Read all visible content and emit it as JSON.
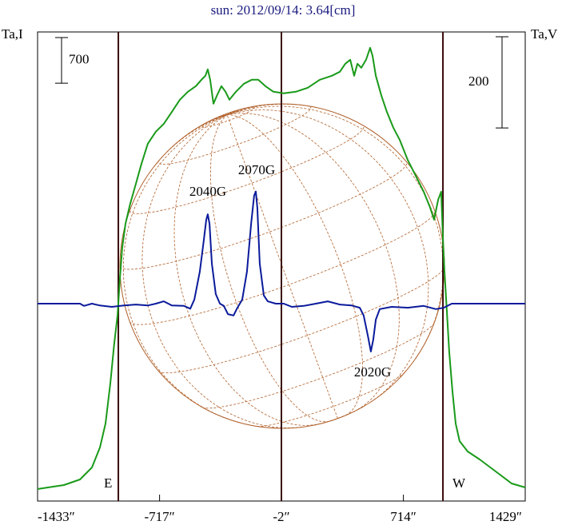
{
  "chart_data": {
    "type": "line",
    "title": "sun: 2012/09/14: 3.64[cm]",
    "ylabel": "Ta,I",
    "y2label": "Ta,V",
    "xlim": [
      -1433,
      1429
    ],
    "xticks": [
      {
        "value": -1433,
        "label": "-1433″"
      },
      {
        "value": -717,
        "label": "-717″"
      },
      {
        "value": -2,
        "label": "-2″"
      },
      {
        "value": 714,
        "label": "714″"
      },
      {
        "value": 1429,
        "label": "1429″"
      }
    ],
    "ylim": [
      0,
      7200
    ],
    "y2lim": [
      -433,
      596
    ],
    "scale_bars": [
      {
        "axis": "y",
        "value": 700
      },
      {
        "axis": "y2",
        "value": 200
      }
    ],
    "vlines": [
      {
        "x": -959,
        "label": "E"
      },
      {
        "x": -2
      },
      {
        "x": 946,
        "label": "W"
      }
    ],
    "annotations": [
      "2040G",
      "2070G",
      "2020G"
    ],
    "series": [
      {
        "color": "#1a9a1a",
        "axis": "y",
        "x": [
          -1433,
          -1372,
          -1278,
          -1184,
          -1114,
          -1067,
          -1034,
          -1006,
          -983,
          -964,
          -950,
          -936,
          -917,
          -889,
          -856,
          -823,
          -786,
          -739,
          -692,
          -645,
          -598,
          -551,
          -504,
          -471,
          -448,
          -434,
          -420,
          -401,
          -377,
          -354,
          -330,
          -307,
          -269,
          -222,
          -176,
          -138,
          -96,
          -49,
          12,
          83,
          153,
          223,
          294,
          341,
          373,
          402,
          425,
          444,
          467,
          495,
          519,
          533,
          552,
          585,
          617,
          655,
          692,
          739,
          786,
          833,
          871,
          894,
          918,
          936,
          946,
          955,
          969,
          983,
          1002,
          1021,
          1044,
          1091,
          1162,
          1256,
          1349,
          1429
        ],
        "values": [
          184,
          209,
          245,
          331,
          515,
          822,
          1190,
          1804,
          2417,
          2847,
          3399,
          3890,
          4258,
          4564,
          4871,
          5178,
          5485,
          5669,
          5791,
          5975,
          6160,
          6282,
          6368,
          6466,
          6528,
          6626,
          6466,
          6098,
          6245,
          6368,
          6282,
          6160,
          6282,
          6405,
          6466,
          6466,
          6368,
          6282,
          6258,
          6282,
          6344,
          6466,
          6528,
          6589,
          6712,
          6773,
          6528,
          6712,
          6650,
          6773,
          6957,
          6834,
          6528,
          6221,
          5975,
          5730,
          5546,
          5239,
          4994,
          4748,
          4503,
          4319,
          4626,
          4748,
          4012,
          3522,
          2908,
          2294,
          1681,
          1190,
          920,
          761,
          638,
          454,
          270,
          209
        ]
      },
      {
        "color": "#0a1a9a",
        "axis": "y2",
        "x": [
          -1433,
          -1184,
          -1161,
          -1114,
          -1067,
          -997,
          -926,
          -856,
          -786,
          -739,
          -692,
          -645,
          -574,
          -537,
          -513,
          -481,
          -457,
          -443,
          -434,
          -424,
          -410,
          -387,
          -363,
          -340,
          -316,
          -283,
          -260,
          -232,
          -204,
          -180,
          -162,
          -152,
          -143,
          -129,
          -105,
          -82,
          -35,
          12,
          59,
          129,
          200,
          270,
          341,
          411,
          458,
          481,
          505,
          523,
          537,
          552,
          575,
          645,
          739,
          833,
          904,
          951,
          998,
          1068,
          1429
        ],
        "values": [
          0,
          0,
          -5,
          0,
          -4,
          -7,
          -4,
          -2,
          -4,
          0,
          5,
          -4,
          -5,
          -11,
          9,
          70,
          140,
          184,
          196,
          175,
          88,
          21,
          0,
          -5,
          -23,
          -26,
          -9,
          9,
          70,
          175,
          237,
          246,
          210,
          88,
          18,
          5,
          0,
          0,
          -7,
          -5,
          0,
          5,
          -2,
          -4,
          -9,
          -26,
          -70,
          -105,
          -79,
          -35,
          -12,
          -7,
          -9,
          -5,
          -12,
          -9,
          0,
          0,
          0
        ]
      }
    ]
  }
}
